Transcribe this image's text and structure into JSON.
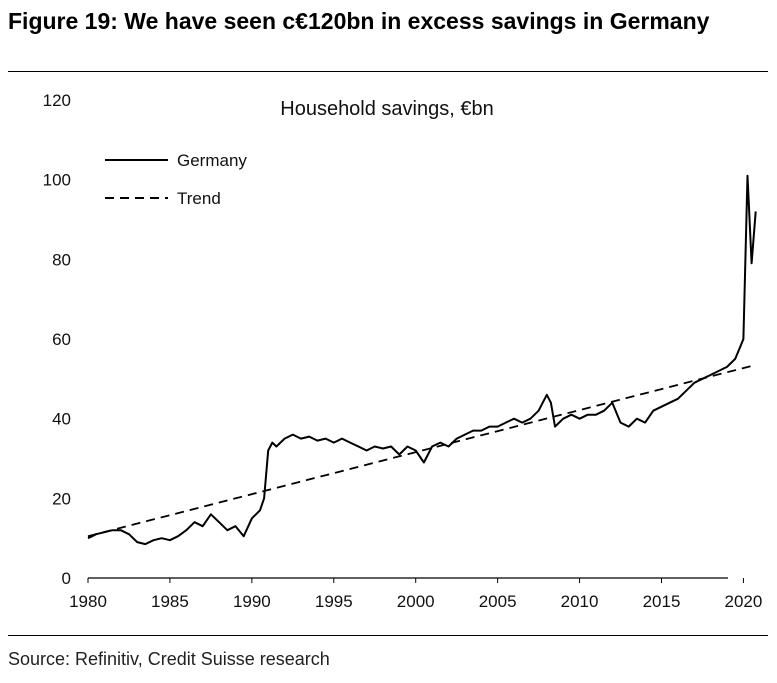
{
  "figure": {
    "title": "Figure 19: We have seen c€120bn in excess savings in Germany",
    "source": "Source: Refinitiv, Credit Suisse research"
  },
  "chart_data": {
    "type": "line",
    "title": "Household savings, €bn",
    "xlabel": "",
    "ylabel": "",
    "xlim": [
      1980,
      2021.5
    ],
    "ylim": [
      0,
      120
    ],
    "x_ticks": [
      1980,
      1985,
      1990,
      1995,
      2000,
      2005,
      2010,
      2015,
      2020
    ],
    "y_ticks": [
      0,
      20,
      40,
      60,
      80,
      100,
      120
    ],
    "grid": false,
    "legend": "top-left",
    "series": [
      {
        "name": "Germany",
        "style": "solid",
        "x": [
          1980,
          1980.5,
          1981,
          1981.5,
          1982,
          1982.5,
          1983,
          1983.5,
          1984,
          1984.5,
          1985,
          1985.5,
          1986,
          1986.5,
          1987,
          1987.5,
          1988,
          1988.5,
          1989,
          1989.5,
          1990,
          1990.5,
          1990.75,
          1991,
          1991.25,
          1991.5,
          1992,
          1992.5,
          1993,
          1993.5,
          1994,
          1994.5,
          1995,
          1995.5,
          1996,
          1996.5,
          1997,
          1997.5,
          1998,
          1998.5,
          1999,
          1999.5,
          2000,
          2000.5,
          2001,
          2001.5,
          2002,
          2002.5,
          2003,
          2003.5,
          2004,
          2004.5,
          2005,
          2005.5,
          2006,
          2006.5,
          2007,
          2007.5,
          2008,
          2008.25,
          2008.5,
          2009,
          2009.5,
          2010,
          2010.5,
          2011,
          2011.5,
          2012,
          2012.5,
          2013,
          2013.5,
          2014,
          2014.5,
          2015,
          2015.5,
          2016,
          2016.5,
          2017,
          2017.5,
          2018,
          2018.5,
          2019,
          2019.5,
          2019.9,
          2020.0,
          2020.25,
          2020.5,
          2020.75
        ],
        "values": [
          10,
          11,
          11.5,
          12,
          12,
          11,
          9,
          8.5,
          9.5,
          10,
          9.5,
          10.5,
          12,
          14,
          13,
          16,
          14,
          12,
          13,
          10.5,
          15,
          17,
          20,
          32,
          34,
          33,
          35,
          36,
          35,
          35.5,
          34.5,
          35,
          34,
          35,
          34,
          33,
          32,
          33,
          32.5,
          33,
          31,
          33,
          32,
          29,
          33,
          34,
          33,
          35,
          36,
          37,
          37,
          38,
          38,
          39,
          40,
          39,
          40,
          42,
          46,
          44,
          38,
          40,
          41,
          40,
          41,
          41,
          42,
          44,
          39,
          38,
          40,
          39,
          42,
          43,
          44,
          45,
          47,
          49,
          50,
          51,
          52,
          53,
          55,
          59,
          60,
          101,
          79,
          92
        ]
      },
      {
        "name": "Trend",
        "style": "dashed",
        "x": [
          1980,
          2020.75
        ],
        "values": [
          10.5,
          53.5
        ]
      }
    ]
  }
}
